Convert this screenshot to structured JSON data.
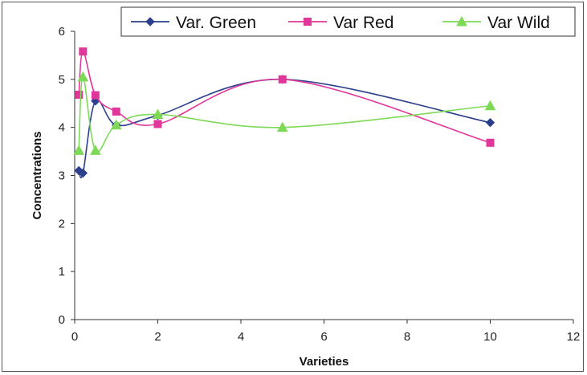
{
  "chart_data": {
    "type": "scatter",
    "title": "",
    "xlabel": "Varieties",
    "ylabel": "Concentrations",
    "xlim": [
      0,
      12
    ],
    "ylim": [
      0,
      6
    ],
    "x_ticks": [
      0,
      2,
      4,
      6,
      8,
      10,
      12
    ],
    "y_ticks": [
      0,
      1,
      2,
      3,
      4,
      5,
      6
    ],
    "grid": false,
    "smoothed_lines": true,
    "legend_position": "top",
    "series": [
      {
        "name": "Var. Green",
        "color": "#2b3f8c",
        "marker": "diamond",
        "points": [
          [
            0.1,
            3.1
          ],
          [
            0.2,
            3.05
          ],
          [
            0.5,
            4.55
          ],
          [
            1,
            4.05
          ],
          [
            2,
            4.25
          ],
          [
            5,
            5.0
          ],
          [
            10,
            4.1
          ]
        ]
      },
      {
        "name": "Var Red",
        "color": "#e0379a",
        "marker": "square",
        "points": [
          [
            0.1,
            4.68
          ],
          [
            0.2,
            5.58
          ],
          [
            0.5,
            4.67
          ],
          [
            1,
            4.33
          ],
          [
            2,
            4.07
          ],
          [
            5,
            5.0
          ],
          [
            10,
            3.68
          ]
        ]
      },
      {
        "name": "Var Wild",
        "color": "#7ed957",
        "marker": "triangle",
        "points": [
          [
            0.1,
            3.52
          ],
          [
            0.2,
            5.05
          ],
          [
            0.5,
            3.52
          ],
          [
            1,
            4.05
          ],
          [
            2,
            4.27
          ],
          [
            5,
            4.0
          ],
          [
            10,
            4.45
          ]
        ]
      }
    ]
  }
}
